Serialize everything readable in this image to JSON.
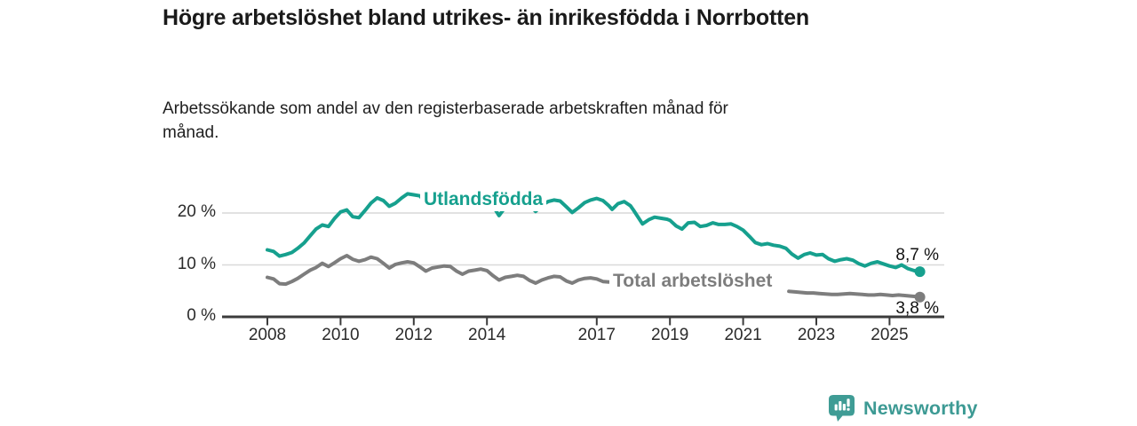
{
  "chart_data": {
    "type": "line",
    "title": "Högre arbetslöshet bland utrikes- än inrikesfödda i Norrbotten",
    "subtitle": "Arbetssökande som andel av den registerbaserade arbetskraften månad för månad.",
    "unit": "%",
    "grid": "horizontal-only",
    "legend": "inline-series-labels",
    "xlim": [
      2007.7,
      2026.3
    ],
    "ylim": [
      0,
      24.6
    ],
    "x_ticks": [
      "2008",
      "2010",
      "2012",
      "2014",
      "2017",
      "2019",
      "2021",
      "2023",
      "2025"
    ],
    "y_ticks": [
      {
        "value": 0,
        "label": "0 %"
      },
      {
        "value": 10,
        "label": "10 %"
      },
      {
        "value": 20,
        "label": "20 %"
      }
    ],
    "colors": {
      "grid": "#d9d9d9",
      "axis": "#3b3b3b",
      "tick_text": "#2b2b2b"
    },
    "series": [
      {
        "name": "Utlandsfödda",
        "color": "#16a08e",
        "end_label": "8,7 %",
        "end_value": 8.7,
        "segments": [
          [
            [
              2008.0,
              12.9
            ],
            [
              2008.17,
              12.6
            ],
            [
              2008.33,
              11.7
            ],
            [
              2008.5,
              12.0
            ],
            [
              2008.67,
              12.4
            ],
            [
              2008.83,
              13.2
            ],
            [
              2009.0,
              14.2
            ],
            [
              2009.17,
              15.6
            ],
            [
              2009.33,
              16.9
            ],
            [
              2009.5,
              17.7
            ],
            [
              2009.67,
              17.4
            ],
            [
              2009.83,
              18.9
            ],
            [
              2010.0,
              20.2
            ],
            [
              2010.17,
              20.6
            ],
            [
              2010.33,
              19.3
            ],
            [
              2010.5,
              19.1
            ],
            [
              2010.67,
              20.5
            ],
            [
              2010.83,
              21.9
            ],
            [
              2011.0,
              22.9
            ],
            [
              2011.17,
              22.4
            ],
            [
              2011.33,
              21.3
            ],
            [
              2011.5,
              21.9
            ],
            [
              2011.67,
              22.9
            ],
            [
              2011.83,
              23.7
            ],
            [
              2012.0,
              23.5
            ],
            [
              2012.17,
              23.3
            ],
            [
              2012.33,
              21.9
            ],
            [
              2012.5,
              22.3
            ],
            [
              2012.67,
              22.9
            ],
            [
              2012.83,
              23.3
            ],
            [
              2013.0,
              23.1
            ],
            [
              2013.17,
              22.5
            ],
            [
              2013.33,
              21.7
            ],
            [
              2013.5,
              22.3
            ],
            [
              2013.67,
              22.9
            ],
            [
              2013.83,
              23.2
            ],
            [
              2014.0,
              22.9
            ],
            [
              2014.17,
              21.3
            ],
            [
              2014.33,
              19.5
            ],
            [
              2014.5,
              21.1
            ],
            [
              2014.67,
              22.3
            ],
            [
              2014.83,
              22.8
            ],
            [
              2015.0,
              22.5
            ],
            [
              2015.17,
              21.5
            ],
            [
              2015.33,
              20.3
            ],
            [
              2015.5,
              21.5
            ],
            [
              2015.67,
              22.2
            ],
            [
              2015.83,
              22.5
            ],
            [
              2016.0,
              22.3
            ],
            [
              2016.17,
              21.2
            ],
            [
              2016.33,
              20.1
            ],
            [
              2016.5,
              21.0
            ],
            [
              2016.67,
              22.0
            ],
            [
              2016.83,
              22.5
            ],
            [
              2017.0,
              22.8
            ],
            [
              2017.17,
              22.4
            ],
            [
              2017.33,
              21.4
            ],
            [
              2017.42,
              20.7
            ],
            [
              2017.58,
              21.8
            ],
            [
              2017.75,
              22.2
            ],
            [
              2017.92,
              21.4
            ],
            [
              2018.0,
              20.6
            ],
            [
              2018.25,
              17.9
            ],
            [
              2018.42,
              18.7
            ],
            [
              2018.58,
              19.2
            ],
            [
              2018.75,
              19.0
            ],
            [
              2018.92,
              18.8
            ],
            [
              2019.0,
              18.6
            ],
            [
              2019.17,
              17.5
            ],
            [
              2019.33,
              16.9
            ],
            [
              2019.5,
              18.1
            ],
            [
              2019.67,
              18.2
            ],
            [
              2019.83,
              17.4
            ],
            [
              2020.0,
              17.6
            ],
            [
              2020.17,
              18.1
            ],
            [
              2020.33,
              17.8
            ],
            [
              2020.5,
              17.8
            ],
            [
              2020.67,
              17.9
            ],
            [
              2020.83,
              17.4
            ],
            [
              2021.0,
              16.7
            ],
            [
              2021.17,
              15.5
            ],
            [
              2021.33,
              14.3
            ],
            [
              2021.5,
              13.9
            ],
            [
              2021.67,
              14.1
            ],
            [
              2021.83,
              13.8
            ],
            [
              2022.0,
              13.6
            ],
            [
              2022.17,
              13.2
            ],
            [
              2022.33,
              12.1
            ],
            [
              2022.5,
              11.3
            ],
            [
              2022.67,
              12.0
            ],
            [
              2022.83,
              12.3
            ],
            [
              2023.0,
              11.9
            ],
            [
              2023.17,
              12.0
            ],
            [
              2023.33,
              11.2
            ],
            [
              2023.5,
              10.7
            ],
            [
              2023.67,
              11.0
            ],
            [
              2023.83,
              11.2
            ],
            [
              2024.0,
              10.9
            ],
            [
              2024.17,
              10.2
            ],
            [
              2024.33,
              9.8
            ],
            [
              2024.5,
              10.3
            ],
            [
              2024.67,
              10.6
            ],
            [
              2024.83,
              10.2
            ],
            [
              2025.0,
              9.8
            ],
            [
              2025.17,
              9.5
            ],
            [
              2025.33,
              10.0
            ],
            [
              2025.5,
              9.3
            ],
            [
              2025.67,
              8.9
            ],
            [
              2025.83,
              8.7
            ]
          ]
        ]
      },
      {
        "name": "Total arbetslöshet",
        "color": "#7d7d7d",
        "end_label": "3,8 %",
        "end_value": 3.8,
        "segments": [
          [
            [
              2008.0,
              7.6
            ],
            [
              2008.17,
              7.3
            ],
            [
              2008.33,
              6.4
            ],
            [
              2008.5,
              6.3
            ],
            [
              2008.67,
              6.8
            ],
            [
              2008.83,
              7.4
            ],
            [
              2009.0,
              8.2
            ],
            [
              2009.17,
              9.0
            ],
            [
              2009.33,
              9.5
            ],
            [
              2009.5,
              10.3
            ],
            [
              2009.67,
              9.7
            ],
            [
              2009.83,
              10.4
            ],
            [
              2010.0,
              11.2
            ],
            [
              2010.17,
              11.8
            ],
            [
              2010.33,
              11.1
            ],
            [
              2010.5,
              10.7
            ],
            [
              2010.67,
              11.0
            ],
            [
              2010.83,
              11.5
            ],
            [
              2011.0,
              11.2
            ],
            [
              2011.17,
              10.3
            ],
            [
              2011.33,
              9.4
            ],
            [
              2011.5,
              10.1
            ],
            [
              2011.67,
              10.4
            ],
            [
              2011.83,
              10.6
            ],
            [
              2012.0,
              10.4
            ],
            [
              2012.17,
              9.6
            ],
            [
              2012.33,
              8.8
            ],
            [
              2012.5,
              9.4
            ],
            [
              2012.67,
              9.6
            ],
            [
              2012.83,
              9.8
            ],
            [
              2013.0,
              9.7
            ],
            [
              2013.17,
              8.8
            ],
            [
              2013.33,
              8.2
            ],
            [
              2013.5,
              8.8
            ],
            [
              2013.67,
              9.0
            ],
            [
              2013.83,
              9.2
            ],
            [
              2014.0,
              8.9
            ],
            [
              2014.17,
              7.9
            ],
            [
              2014.33,
              7.1
            ],
            [
              2014.5,
              7.6
            ],
            [
              2014.67,
              7.8
            ],
            [
              2014.83,
              8.0
            ],
            [
              2015.0,
              7.8
            ],
            [
              2015.17,
              7.0
            ],
            [
              2015.33,
              6.5
            ],
            [
              2015.5,
              7.1
            ],
            [
              2015.67,
              7.5
            ],
            [
              2015.83,
              7.8
            ],
            [
              2016.0,
              7.7
            ],
            [
              2016.17,
              6.9
            ],
            [
              2016.33,
              6.5
            ],
            [
              2016.5,
              7.1
            ],
            [
              2016.67,
              7.4
            ],
            [
              2016.83,
              7.5
            ],
            [
              2017.0,
              7.3
            ],
            [
              2017.17,
              6.8
            ],
            [
              2017.33,
              6.7
            ],
            [
              2017.5,
              7.0
            ]
          ],
          [
            [
              2022.25,
              4.9
            ],
            [
              2022.42,
              4.8
            ],
            [
              2022.58,
              4.7
            ],
            [
              2022.75,
              4.6
            ],
            [
              2022.92,
              4.6
            ],
            [
              2023.08,
              4.5
            ],
            [
              2023.25,
              4.4
            ],
            [
              2023.42,
              4.3
            ],
            [
              2023.58,
              4.3
            ],
            [
              2023.75,
              4.4
            ],
            [
              2023.92,
              4.5
            ],
            [
              2024.08,
              4.4
            ],
            [
              2024.25,
              4.3
            ],
            [
              2024.42,
              4.2
            ],
            [
              2024.58,
              4.2
            ],
            [
              2024.75,
              4.3
            ],
            [
              2024.92,
              4.2
            ],
            [
              2025.08,
              4.1
            ],
            [
              2025.25,
              4.2
            ],
            [
              2025.42,
              4.1
            ],
            [
              2025.58,
              4.0
            ],
            [
              2025.75,
              3.9
            ],
            [
              2025.83,
              3.8
            ]
          ]
        ]
      }
    ]
  },
  "branding": {
    "logo_text": "Newsworthy",
    "logo_color": "#3d9a94"
  }
}
